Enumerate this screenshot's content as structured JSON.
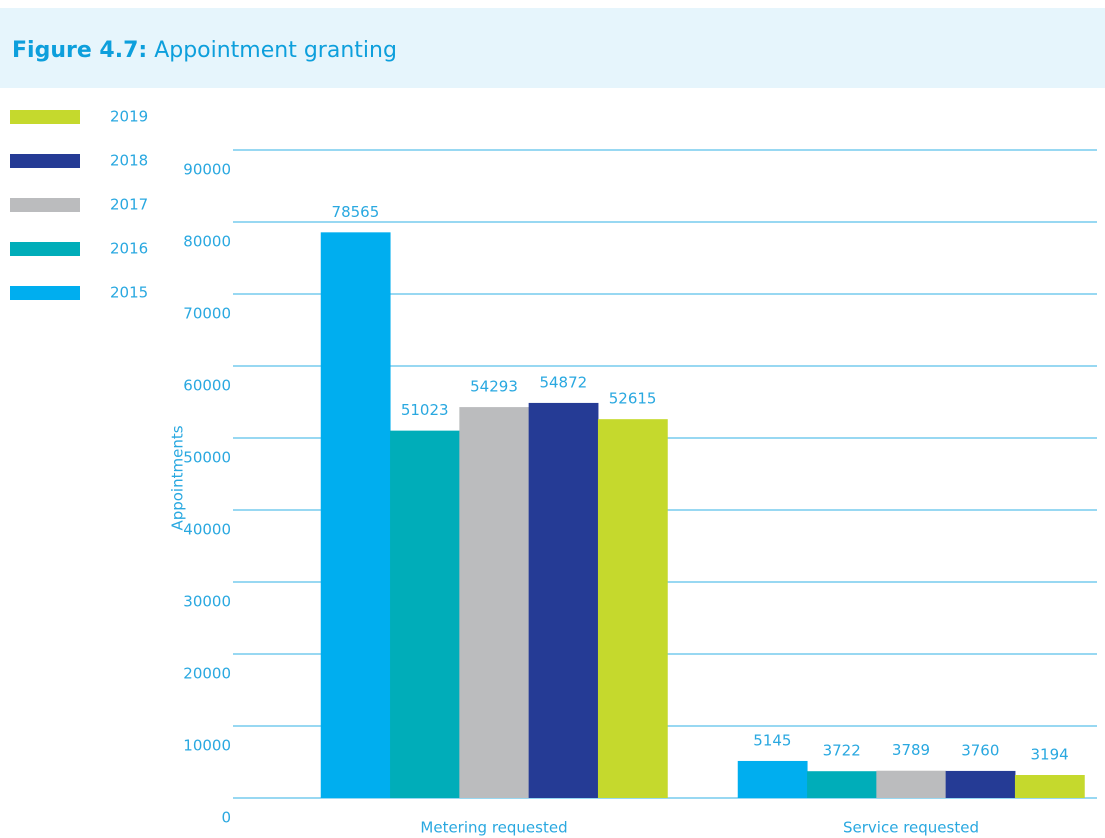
{
  "chart_data": {
    "type": "bar",
    "title_prefix": "Figure 4.7:",
    "title": "Appointment granting",
    "y_label": "Appointments",
    "categories": [
      "Metering requested",
      "Service requested"
    ],
    "series": [
      {
        "name": "2015",
        "color": "#00aeef",
        "values": [
          78565,
          5145
        ]
      },
      {
        "name": "2016",
        "color": "#00adb9",
        "values": [
          51023,
          3722
        ]
      },
      {
        "name": "2017",
        "color": "#bbbcbe",
        "values": [
          54293,
          3789
        ]
      },
      {
        "name": "2018",
        "color": "#253b95",
        "values": [
          54872,
          3760
        ]
      },
      {
        "name": "2019",
        "color": "#c5d92d",
        "values": [
          52615,
          3194
        ]
      }
    ],
    "ylim": [
      0,
      90000
    ],
    "yticks": [
      0,
      10000,
      20000,
      30000,
      40000,
      50000,
      60000,
      70000,
      80000,
      90000
    ],
    "grid": true,
    "legend": "left"
  }
}
